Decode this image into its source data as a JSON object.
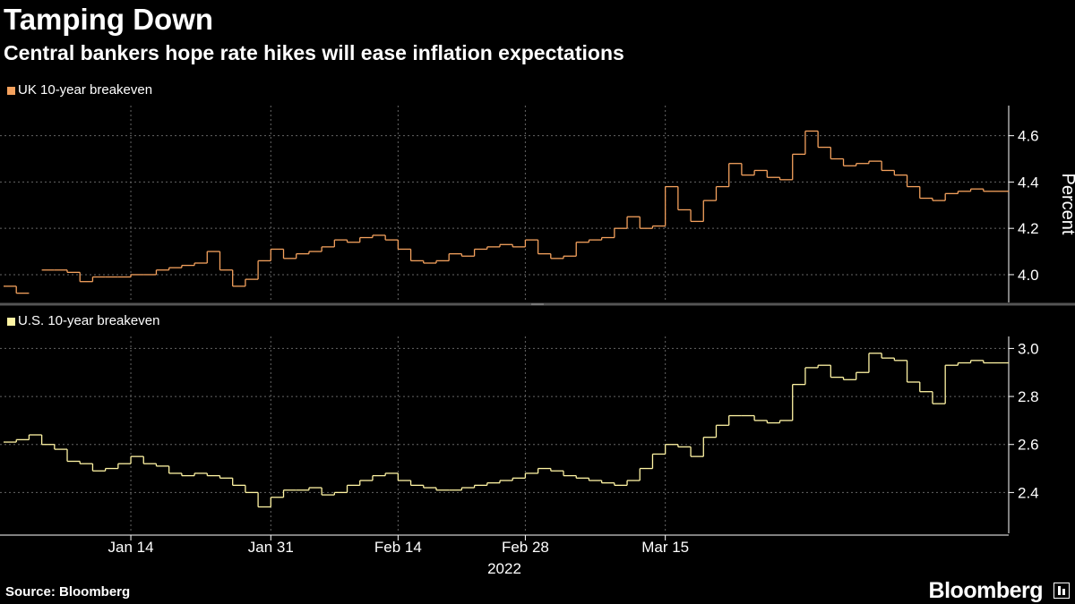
{
  "header": {
    "title": "Tamping Down",
    "subtitle": "Central bankers hope rate hikes will ease inflation expectations"
  },
  "footer": {
    "source": "Source: Bloomberg",
    "brand": "Bloomberg"
  },
  "colors": {
    "uk": "#f4a15d",
    "us": "#fff4a3",
    "grid": "#666666",
    "axis": "#ffffff",
    "divider": "#555555"
  },
  "chart_data": [
    {
      "type": "line",
      "style": "step",
      "title": "UK 10-year breakeven",
      "ylabel": "Percent",
      "ylim": [
        3.88,
        4.73
      ],
      "yticks": [
        4.0,
        4.2,
        4.4,
        4.6
      ],
      "ytick_labels": [
        "4.0",
        "4.2",
        "4.4",
        "4.6"
      ],
      "grid": true,
      "series": [
        {
          "name": "UK 10-year breakeven",
          "x": [
            0,
            1,
            3,
            4,
            5,
            6,
            7,
            8,
            9,
            10,
            11,
            12,
            13,
            14,
            15,
            16,
            17,
            18,
            19,
            20,
            21,
            22,
            23,
            24,
            25,
            26,
            27,
            28,
            29,
            30,
            31,
            32,
            33,
            34,
            35,
            36,
            37,
            38,
            39,
            40,
            41,
            42,
            43,
            44,
            45,
            46,
            47,
            48,
            49,
            50,
            51,
            52,
            53,
            54,
            55,
            56,
            57,
            58,
            59,
            60,
            61,
            62,
            63,
            64,
            65,
            66,
            67,
            68,
            69,
            70,
            71,
            72,
            73,
            74,
            75,
            76,
            77,
            78
          ],
          "values": [
            3.95,
            3.92,
            4.02,
            4.02,
            4.01,
            3.97,
            3.99,
            3.99,
            3.99,
            4.0,
            4.0,
            4.02,
            4.03,
            4.04,
            4.05,
            4.1,
            4.02,
            3.95,
            3.98,
            4.06,
            4.11,
            4.07,
            4.09,
            4.1,
            4.12,
            4.15,
            4.14,
            4.16,
            4.17,
            4.15,
            4.11,
            4.06,
            4.05,
            4.06,
            4.09,
            4.08,
            4.11,
            4.12,
            4.13,
            4.12,
            4.15,
            4.09,
            4.07,
            4.08,
            4.14,
            4.15,
            4.16,
            4.2,
            4.25,
            4.2,
            4.21,
            4.38,
            4.28,
            4.23,
            4.32,
            4.38,
            4.48,
            4.43,
            4.45,
            4.42,
            4.41,
            4.52,
            4.62,
            4.55,
            4.5,
            4.47,
            4.48,
            4.49,
            4.45,
            4.43,
            4.38,
            4.33,
            4.32,
            4.35,
            4.36,
            4.37,
            4.36,
            4.36
          ]
        }
      ]
    },
    {
      "type": "line",
      "style": "step",
      "title": "U.S. 10-year breakeven",
      "ylim": [
        2.23,
        3.05
      ],
      "yticks": [
        2.4,
        2.6,
        2.8,
        3.0
      ],
      "ytick_labels": [
        "2.4",
        "2.6",
        "2.8",
        "3.0"
      ],
      "grid": true,
      "series": [
        {
          "name": "U.S. 10-year breakeven",
          "x": [
            0,
            1,
            2,
            3,
            4,
            5,
            6,
            7,
            8,
            9,
            10,
            11,
            12,
            13,
            14,
            15,
            16,
            17,
            18,
            19,
            20,
            21,
            22,
            23,
            24,
            25,
            26,
            27,
            28,
            29,
            30,
            31,
            32,
            33,
            34,
            35,
            36,
            37,
            38,
            39,
            40,
            41,
            42,
            43,
            44,
            45,
            46,
            47,
            48,
            49,
            50,
            51,
            52,
            53,
            54,
            55,
            56,
            57,
            58,
            59,
            60,
            61,
            62,
            63,
            64,
            65,
            66,
            67,
            68,
            69,
            70,
            71,
            72,
            73,
            74,
            75,
            76,
            77,
            78
          ],
          "values": [
            2.61,
            2.62,
            2.64,
            2.6,
            2.58,
            2.53,
            2.52,
            2.49,
            2.5,
            2.52,
            2.55,
            2.52,
            2.51,
            2.48,
            2.47,
            2.48,
            2.47,
            2.46,
            2.43,
            2.4,
            2.34,
            2.38,
            2.41,
            2.41,
            2.42,
            2.39,
            2.4,
            2.43,
            2.45,
            2.47,
            2.48,
            2.45,
            2.43,
            2.42,
            2.41,
            2.41,
            2.42,
            2.43,
            2.44,
            2.45,
            2.46,
            2.48,
            2.5,
            2.49,
            2.47,
            2.46,
            2.45,
            2.44,
            2.43,
            2.45,
            2.5,
            2.56,
            2.6,
            2.59,
            2.55,
            2.63,
            2.68,
            2.72,
            2.72,
            2.7,
            2.69,
            2.7,
            2.85,
            2.92,
            2.93,
            2.88,
            2.87,
            2.9,
            2.98,
            2.96,
            2.95,
            2.86,
            2.82,
            2.77,
            2.93,
            2.94,
            2.95,
            2.94,
            2.94
          ]
        }
      ]
    }
  ],
  "x_axis": {
    "ticks": [
      10,
      21,
      31,
      41,
      52
    ],
    "tick_labels": [
      "Jan 14",
      "Jan 31",
      "Feb 14",
      "Feb 28",
      "Mar 15"
    ],
    "year_label": "2022",
    "xlim": [
      0,
      78
    ]
  }
}
